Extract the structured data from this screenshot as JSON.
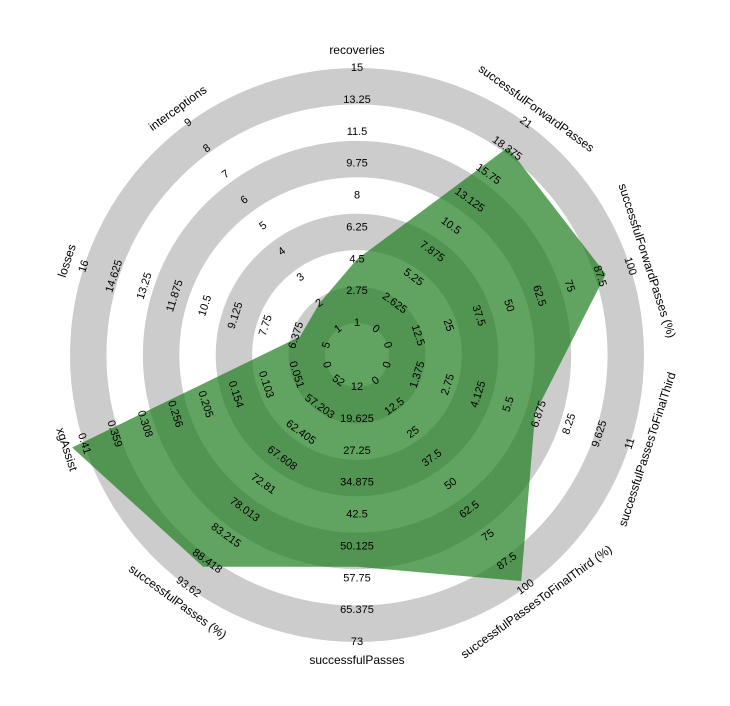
{
  "chart_data": {
    "type": "radar",
    "colors": {
      "ring_light": "#cccccc",
      "ring_dark": "#ffffff",
      "center": "#ffffff",
      "fill": "#1e7d1e",
      "fill_opacity": 0.7
    },
    "rings": 7,
    "axes": [
      {
        "label": "recoveries",
        "ticks": [
          "1",
          "2.75",
          "4.5",
          "6.25",
          "8",
          "9.75",
          "11.5",
          "13.25",
          "15"
        ],
        "value": 4.5
      },
      {
        "label": "successfulForwardPasses",
        "ticks": [
          "0",
          "2.625",
          "5.25",
          "7.875",
          "10.5",
          "13.125",
          "15.75",
          "18.375",
          "21"
        ],
        "value": 18.5
      },
      {
        "label": "successfulForwardPasses (%)",
        "ticks": [
          "0",
          "12.5",
          "25",
          "37.5",
          "50",
          "62.5",
          "75",
          "87.5",
          "100"
        ],
        "value": 90
      },
      {
        "label": "successfulPassesToFinalThird",
        "ticks": [
          "0",
          "1.375",
          "2.75",
          "4.125",
          "5.5",
          "6.875",
          "8.25",
          "9.625",
          "11"
        ],
        "value": 6.7
      },
      {
        "label": "successfulPassesToFinalThird (%)",
        "ticks": [
          "0",
          "12.5",
          "25",
          "37.5",
          "50",
          "62.5",
          "75",
          "87.5",
          "100"
        ],
        "value": 97
      },
      {
        "label": "successfulPasses",
        "ticks": [
          "12",
          "19.625",
          "27.25",
          "34.875",
          "42.5",
          "50.125",
          "57.75",
          "65.375",
          "73"
        ],
        "value": 55
      },
      {
        "label": "successfulPasses (%)",
        "ticks": [
          "52",
          "57.203",
          "62.405",
          "67.608",
          "72.81",
          "78.013",
          "83.215",
          "88.418",
          "93.62"
        ],
        "value": 89.5
      },
      {
        "label": "xgAssist",
        "ticks": [
          "0",
          "0.051",
          "0.103",
          "0.154",
          "0.205",
          "0.256",
          "0.308",
          "0.359",
          "0.41"
        ],
        "value": 0.43
      },
      {
        "label": "losses",
        "ticks": [
          "5",
          "6.375",
          "7.75",
          "9.125",
          "10.5",
          "11.875",
          "13.25",
          "14.625",
          "16"
        ],
        "value": 6.2
      },
      {
        "label": "interceptions",
        "ticks": [
          "1",
          "2",
          "3",
          "4",
          "5",
          "6",
          "7",
          "8",
          "9"
        ],
        "value": 2
      }
    ]
  }
}
